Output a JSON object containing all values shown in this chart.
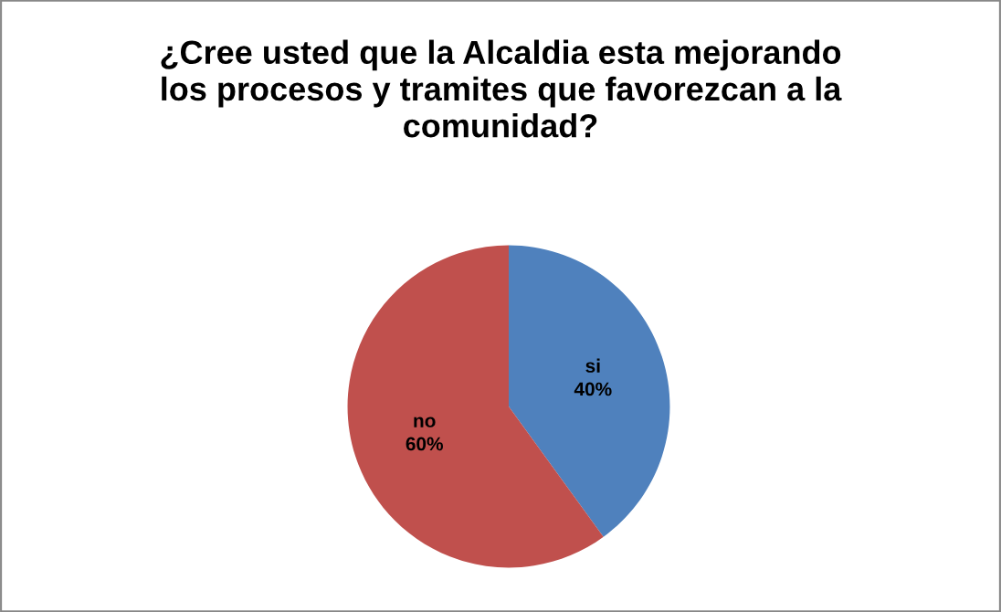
{
  "chart_data": {
    "type": "pie",
    "title": "¿Cree usted que la Alcaldia esta mejorando\nlos procesos y tramites que favorezcan a la\ncomunidad?",
    "categories": [
      "si",
      "no"
    ],
    "values": [
      40,
      60
    ],
    "colors": [
      "#4f81bd",
      "#c0504d"
    ],
    "value_labels": [
      "40%",
      "60%"
    ]
  }
}
